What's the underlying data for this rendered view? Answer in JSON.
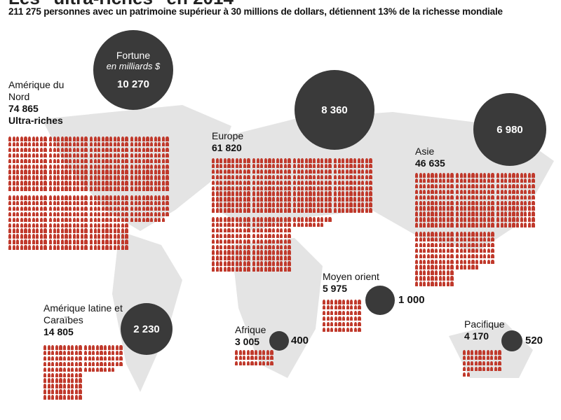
{
  "title": "Les \"ultra-riches\" en 2014",
  "subtitle": "211 275 personnes avec un patrimoine supérieur à 30 millions de dollars, détiennent 13% de la richesse mondiale",
  "legend": {
    "fortune_title": "Fortune",
    "fortune_unit": "en milliards $",
    "people_label": "Ultra-riches"
  },
  "colors": {
    "icon": "#c0392b",
    "circle": "#3a3a3a",
    "map": "#e4e4e4"
  },
  "chart_data": {
    "type": "pictogram",
    "title": "Les \"ultra-riches\" en 2014",
    "icon_unit_people": 100,
    "regions": [
      {
        "name": "Amérique du Nord",
        "ultra_riches": 74865,
        "ultra_riches_label": "74 865",
        "fortune_bn_usd": 10270,
        "fortune_label": "10 270"
      },
      {
        "name": "Europe",
        "ultra_riches": 61820,
        "ultra_riches_label": "61 820",
        "fortune_bn_usd": 8360,
        "fortune_label": "8 360"
      },
      {
        "name": "Asie",
        "ultra_riches": 46635,
        "ultra_riches_label": "46 635",
        "fortune_bn_usd": 6980,
        "fortune_label": "6 980"
      },
      {
        "name": "Amérique latine et Caraïbes",
        "ultra_riches": 14805,
        "ultra_riches_label": "14 805",
        "fortune_bn_usd": 2230,
        "fortune_label": "2 230"
      },
      {
        "name": "Moyen orient",
        "ultra_riches": 5975,
        "ultra_riches_label": "5 975",
        "fortune_bn_usd": 1000,
        "fortune_label": "1 000"
      },
      {
        "name": "Afrique",
        "ultra_riches": 3005,
        "ultra_riches_label": "3 005",
        "fortune_bn_usd": 400,
        "fortune_label": "400"
      },
      {
        "name": "Pacifique",
        "ultra_riches": 4170,
        "ultra_riches_label": "4 170",
        "fortune_bn_usd": 520,
        "fortune_label": "520"
      }
    ]
  }
}
